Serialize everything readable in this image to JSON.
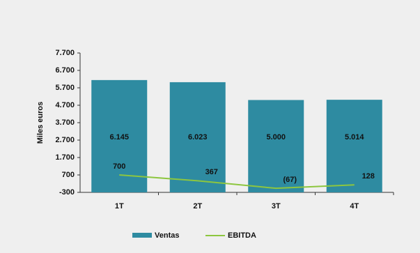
{
  "chart_data": {
    "type": "bar-line",
    "y_label": "Miles euros",
    "categories": [
      "1T",
      "2T",
      "3T",
      "4T"
    ],
    "series": [
      {
        "name": "Ventas",
        "type": "bar",
        "color": "#2e8ba1",
        "values": [
          6145,
          6023,
          5000,
          5014
        ],
        "value_labels": [
          "6.145",
          "6.023",
          "5.000",
          "5.014"
        ]
      },
      {
        "name": "EBITDA",
        "type": "line",
        "color": "#8dc63f",
        "values": [
          700,
          367,
          -67,
          128
        ],
        "value_labels": [
          "700",
          "367",
          "(67)",
          "128"
        ]
      }
    ],
    "ylim": [
      -300,
      7700
    ],
    "yticks": [
      -300,
      700,
      {
        "value": 1700,
        "label": "1.700"
      },
      {
        "value": 2700,
        "label": "2.700"
      },
      {
        "value": 3700,
        "label": "3.700"
      },
      {
        "value": 4700,
        "label": "4.700"
      },
      {
        "value": 5700,
        "label": "5.700"
      },
      {
        "value": 6700,
        "label": "6.700"
      },
      {
        "value": 7700,
        "label": "7.700"
      }
    ],
    "grid": false,
    "legend": "bottom"
  }
}
